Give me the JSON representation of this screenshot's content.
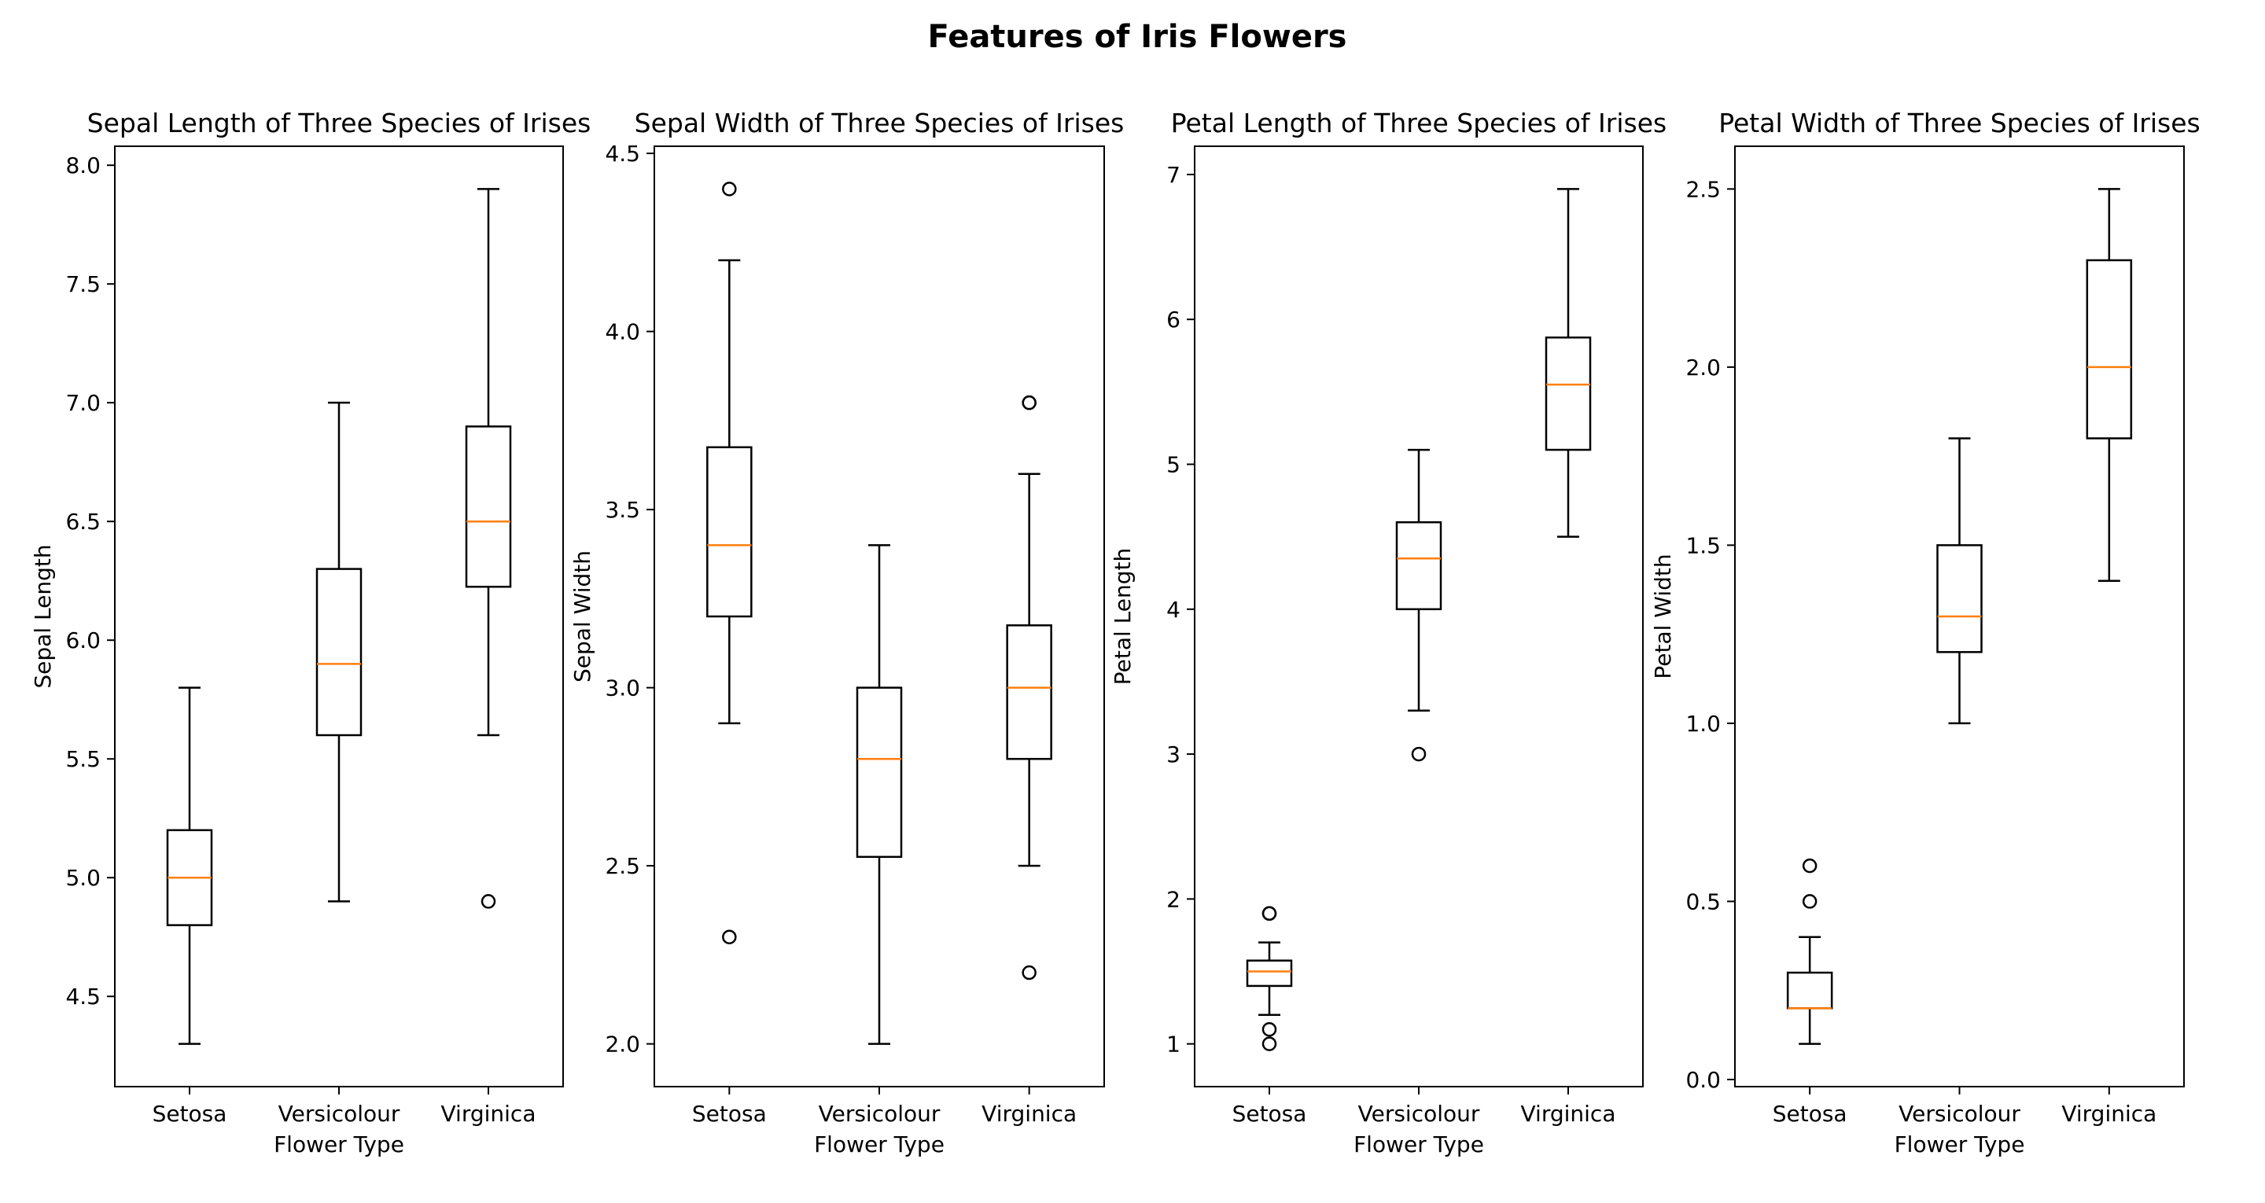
{
  "title": "Features of Iris Flowers",
  "chart_data": [
    {
      "type": "boxplot",
      "title": "Sepal Length of Three Species of Irises",
      "xlabel": "Flower Type",
      "ylabel": "Sepal Length",
      "categories": [
        "Setosa",
        "Versicolour",
        "Virginica"
      ],
      "ylim": [
        4.12,
        8.08
      ],
      "yticks": [
        4.5,
        5.0,
        5.5,
        6.0,
        6.5,
        7.0,
        7.5,
        8.0
      ],
      "ytick_labels": [
        "4.5",
        "5.0",
        "5.5",
        "6.0",
        "6.5",
        "7.0",
        "7.5",
        "8.0"
      ],
      "boxes": [
        {
          "category": "Setosa",
          "whisker_low": 4.3,
          "q1": 4.8,
          "median": 5.0,
          "q3": 5.2,
          "whisker_high": 5.8,
          "outliers": []
        },
        {
          "category": "Versicolour",
          "whisker_low": 4.9,
          "q1": 5.6,
          "median": 5.9,
          "q3": 6.3,
          "whisker_high": 7.0,
          "outliers": []
        },
        {
          "category": "Virginica",
          "whisker_low": 5.6,
          "q1": 6.225,
          "median": 6.5,
          "q3": 6.9,
          "whisker_high": 7.9,
          "outliers": [
            4.9
          ]
        }
      ]
    },
    {
      "type": "boxplot",
      "title": "Sepal Width of Three Species of Irises",
      "xlabel": "Flower Type",
      "ylabel": "Sepal Width",
      "categories": [
        "Setosa",
        "Versicolour",
        "Virginica"
      ],
      "ylim": [
        1.88,
        4.52
      ],
      "yticks": [
        2.0,
        2.5,
        3.0,
        3.5,
        4.0,
        4.5
      ],
      "ytick_labels": [
        "2.0",
        "2.5",
        "3.0",
        "3.5",
        "4.0",
        "4.5"
      ],
      "boxes": [
        {
          "category": "Setosa",
          "whisker_low": 2.9,
          "q1": 3.2,
          "median": 3.4,
          "q3": 3.675,
          "whisker_high": 4.2,
          "outliers": [
            4.4,
            2.3
          ]
        },
        {
          "category": "Versicolour",
          "whisker_low": 2.0,
          "q1": 2.525,
          "median": 2.8,
          "q3": 3.0,
          "whisker_high": 3.4,
          "outliers": []
        },
        {
          "category": "Virginica",
          "whisker_low": 2.5,
          "q1": 2.8,
          "median": 3.0,
          "q3": 3.175,
          "whisker_high": 3.6,
          "outliers": [
            3.8,
            3.8,
            2.2
          ]
        }
      ]
    },
    {
      "type": "boxplot",
      "title": "Petal Length of Three Species of Irises",
      "xlabel": "Flower Type",
      "ylabel": "Petal Length",
      "categories": [
        "Setosa",
        "Versicolour",
        "Virginica"
      ],
      "ylim": [
        0.705,
        7.195
      ],
      "yticks": [
        1,
        2,
        3,
        4,
        5,
        6,
        7
      ],
      "ytick_labels": [
        "1",
        "2",
        "3",
        "4",
        "5",
        "6",
        "7"
      ],
      "boxes": [
        {
          "category": "Setosa",
          "whisker_low": 1.2,
          "q1": 1.4,
          "median": 1.5,
          "q3": 1.575,
          "whisker_high": 1.7,
          "outliers": [
            1.9,
            1.9,
            1.1,
            1.0
          ]
        },
        {
          "category": "Versicolour",
          "whisker_low": 3.3,
          "q1": 4.0,
          "median": 4.35,
          "q3": 4.6,
          "whisker_high": 5.1,
          "outliers": [
            3.0
          ]
        },
        {
          "category": "Virginica",
          "whisker_low": 4.5,
          "q1": 5.1,
          "median": 5.55,
          "q3": 5.875,
          "whisker_high": 6.9,
          "outliers": []
        }
      ]
    },
    {
      "type": "boxplot",
      "title": "Petal Width of Three Species of Irises",
      "xlabel": "Flower Type",
      "ylabel": "Petal Width",
      "categories": [
        "Setosa",
        "Versicolour",
        "Virginica"
      ],
      "ylim": [
        -0.02,
        2.62
      ],
      "yticks": [
        0.0,
        0.5,
        1.0,
        1.5,
        2.0,
        2.5
      ],
      "ytick_labels": [
        "0.0",
        "0.5",
        "1.0",
        "1.5",
        "2.0",
        "2.5"
      ],
      "boxes": [
        {
          "category": "Setosa",
          "whisker_low": 0.1,
          "q1": 0.2,
          "median": 0.2,
          "q3": 0.3,
          "whisker_high": 0.4,
          "outliers": [
            0.6,
            0.5
          ]
        },
        {
          "category": "Versicolour",
          "whisker_low": 1.0,
          "q1": 1.2,
          "median": 1.3,
          "q3": 1.5,
          "whisker_high": 1.8,
          "outliers": []
        },
        {
          "category": "Virginica",
          "whisker_low": 1.4,
          "q1": 1.8,
          "median": 2.0,
          "q3": 2.3,
          "whisker_high": 2.5,
          "outliers": []
        }
      ]
    }
  ],
  "colors": {
    "box": "#000000",
    "median": "#ff7f0e",
    "background": "#ffffff"
  }
}
